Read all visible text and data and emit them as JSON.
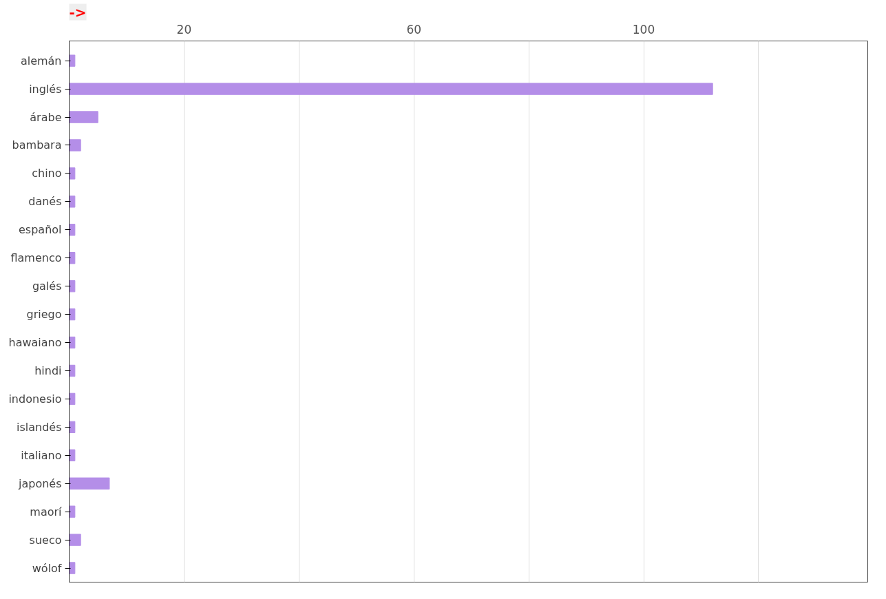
{
  "chart_data": {
    "type": "bar",
    "orientation": "horizontal",
    "title": "->",
    "categories": [
      "alemán",
      "inglés",
      "árabe",
      "bambara",
      "chino",
      "danés",
      "español",
      "flamenco",
      "galés",
      "griego",
      "hawaiano",
      "hindi",
      "indonesio",
      "islandés",
      "italiano",
      "japonés",
      "maorí",
      "sueco",
      "wólof"
    ],
    "values": [
      1,
      112,
      5,
      2,
      1,
      1,
      1,
      1,
      1,
      1,
      1,
      1,
      1,
      1,
      1,
      7,
      1,
      2,
      1
    ],
    "color": "#b48ee8",
    "xlim": [
      0,
      139
    ],
    "xticks": [
      {
        "value": 0,
        "label": null
      },
      20,
      {
        "value": 40,
        "label": null
      },
      60,
      {
        "value": 80,
        "label": null
      },
      100,
      {
        "value": 120,
        "label": null
      }
    ],
    "grid": "x"
  }
}
